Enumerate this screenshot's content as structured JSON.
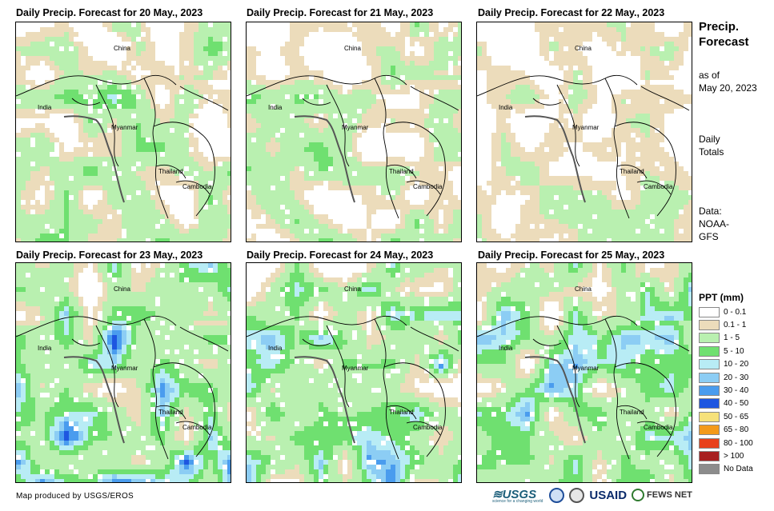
{
  "panels": [
    {
      "title": "Daily Precip. Forecast for 20 May., 2023",
      "seed": 11,
      "wet": 1.0
    },
    {
      "title": "Daily Precip. Forecast for 21 May., 2023",
      "seed": 23,
      "wet": 1.0
    },
    {
      "title": "Daily Precip. Forecast for 22 May., 2023",
      "seed": 37,
      "wet": 0.85
    },
    {
      "title": "Daily Precip. Forecast for 23 May., 2023",
      "seed": 41,
      "wet": 1.45
    },
    {
      "title": "Daily Precip. Forecast for 24 May., 2023",
      "seed": 53,
      "wet": 1.35
    },
    {
      "title": "Daily Precip. Forecast for 25 May., 2023",
      "seed": 67,
      "wet": 1.4
    }
  ],
  "country_labels": {
    "china": "China",
    "india": "India",
    "myanmar": "Myanmar",
    "thailand": "Thailand",
    "cambodia": "Cambodia"
  },
  "side": {
    "title_line1": "Precip.",
    "title_line2": "Forecast",
    "asof_line1": "as of",
    "asof_line2": "May 20, 2023",
    "daily_line1": "Daily",
    "daily_line2": "Totals",
    "data_line1": "Data:",
    "data_line2": "NOAA-",
    "data_line3": "GFS"
  },
  "legend": {
    "title": "PPT (mm)",
    "items": [
      {
        "label": "0 - 0.1",
        "color": "#ffffff"
      },
      {
        "label": "0.1 - 1",
        "color": "#ecdcbb"
      },
      {
        "label": "1 - 5",
        "color": "#b9f0b0"
      },
      {
        "label": "5 - 10",
        "color": "#6fe070"
      },
      {
        "label": "10 - 20",
        "color": "#b8ecf5"
      },
      {
        "label": "20 - 30",
        "color": "#8ccdf4"
      },
      {
        "label": "30 - 40",
        "color": "#4a9cee"
      },
      {
        "label": "40 - 50",
        "color": "#1e56e0"
      },
      {
        "label": "50 - 65",
        "color": "#f6e17a"
      },
      {
        "label": "65 - 80",
        "color": "#f39a1a"
      },
      {
        "label": "80 - 100",
        "color": "#e8401a"
      },
      {
        "label": "> 100",
        "color": "#a82020"
      },
      {
        "label": "No Data",
        "color": "#8c8c8c"
      }
    ]
  },
  "footer": {
    "credit": "Map produced by USGS/EROS",
    "usgs": "≋USGS",
    "usgs_tag": "science for a changing world",
    "usaid": "USAID",
    "fews": "FEWS NET"
  }
}
